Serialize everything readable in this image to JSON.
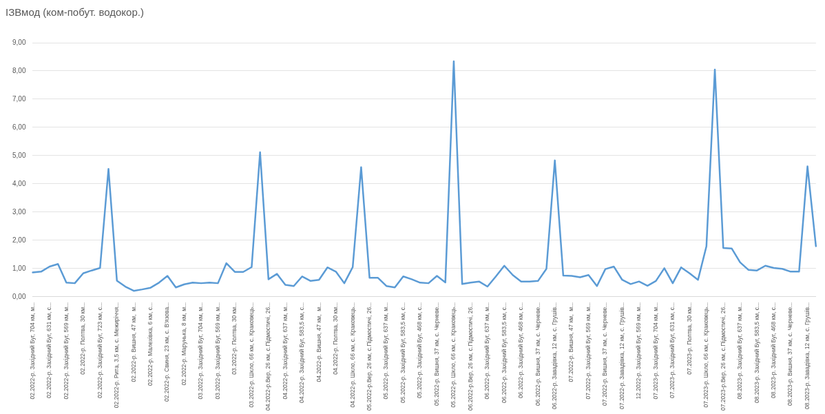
{
  "chart_data": {
    "type": "line",
    "title": "ІЗВмод (ком-побут. водокор.)",
    "categories": [
      "02.2022-р. Західний Буг, 704 км, м...",
      null,
      "02.2022-р. Західний Буг, 631 км, с...",
      null,
      "02.2022-р. Західний Буг, 569 км, м...",
      null,
      "02.2022-р. Полтва, 30 км...",
      null,
      "02.2022-р. Західний Буг, 723 км, с...",
      null,
      "02.2022-р. Рита, 3,5 км, с. Межиріччя...",
      null,
      "02.2022-р. Вишня, 47 км,  м...",
      null,
      "02.2022-р. Малехівка, 6 км, с...",
      null,
      "02.2022-р. Свиня, 23 км, с. В'язова...",
      null,
      "02.2022-р. Марунька, 8 км, м...",
      null,
      "03.2022-р. Західний Буг, 704 км, м...",
      null,
      "03.2022-р. Західний Буг, 569 км, м...",
      null,
      "03.2022-р. Полтва, 30 км...",
      null,
      "03.2022-р. Шкло, 66 км, с. Краковець...",
      null,
      "04.2022-р.Вер, 26 км, с.Підмостичі, 26...",
      null,
      "04.2022-р. Західний Буг, 637 км, м...",
      null,
      "04.2022-р. Західний Буг, 583,5 км, с...",
      null,
      "04.2022-р. Вишня, 47 км,  м...",
      null,
      "04.2022-р. Полтва, 30 км...",
      null,
      "04.2022-р. Шкло, 66 км, с. Краковець...",
      null,
      "05.2022-р.Вер, 26 км, с.Підмостичі, 26...",
      null,
      "05.2022-р. Західний Буг, 637 км, м...",
      null,
      "05.2022-р. Західний Буг, 583,5 км, с...",
      null,
      "05.2022-р. Західний Буг, 468 км, с...",
      null,
      "05.2022-р. Вишня, 37 км, с. Черневе...",
      null,
      "05.2022-р. Шкло, 66 км, с. Краковець...",
      null,
      "06.2022-р.Вер, 26 км, с.Підмостичі, 26...",
      null,
      "06.2022-р. Західний Буг, 637 км, м...",
      null,
      "06.2022-р. Західний Буг, 583,5 км, с...",
      null,
      "06.2022-р. Західний Буг, 468 км, с...",
      null,
      "06.2022-р. Вишня, 37 км, с. Черневе...",
      null,
      "06.2022-р. Завадівка, 12 км, с. Грушів...",
      null,
      "07.2022-р. Вишня, 47 км,  м...",
      null,
      "07.2022-р. Західний Буг, 569 км, м...",
      null,
      "07.2022-р. Вишня, 37 км, с. Черневе...",
      null,
      "07.2022-р. Завадівка, 12 км, с. Грушів...",
      null,
      "12.2022-р. Західний Буг, 569 км, м...",
      null,
      "07.2023-р. Західний Буг, 704 км, м...",
      null,
      "07.2023-р. Західний Буг, 631 км, с...",
      null,
      "07.2023-р. Полтва, 30 км...",
      null,
      "07.2023-р. Шкло, 66 км, с. Краковець...",
      null,
      "07.2023-р.Вер, 26 км, с.Підмостичі, 26...",
      null,
      "08.2023-р. Західний Буг, 637 км, м...",
      null,
      "08.2023-р. Західний Буг, 583,5 км, с...",
      null,
      "08.2023-р. Західний Буг, 468 км, с...",
      null,
      "08.2023-р. Вишня, 37 км, с. Черневе...",
      null,
      "08.2023-р. Завадівка, 12 км, с. Грушів...",
      null
    ],
    "series": [
      {
        "color": "#5b9bd5",
        "values": [
          0.86,
          0.89,
          1.07,
          1.16,
          0.5,
          0.48,
          0.83,
          0.93,
          1.02,
          4.53,
          0.57,
          0.36,
          0.21,
          0.26,
          0.32,
          0.5,
          0.74,
          0.33,
          0.44,
          0.5,
          0.48,
          0.5,
          0.48,
          1.19,
          0.88,
          0.88,
          1.05,
          5.12,
          0.62,
          0.81,
          0.42,
          0.38,
          0.72,
          0.56,
          0.6,
          1.04,
          0.89,
          0.48,
          1.05,
          4.59,
          0.67,
          0.67,
          0.38,
          0.33,
          0.72,
          0.62,
          0.5,
          0.48,
          0.74,
          0.51,
          8.34,
          0.45,
          0.5,
          0.54,
          0.36,
          0.72,
          1.1,
          0.77,
          0.54,
          0.54,
          0.56,
          0.99,
          4.83,
          0.75,
          0.74,
          0.69,
          0.77,
          0.38,
          0.98,
          1.07,
          0.6,
          0.45,
          0.54,
          0.39,
          0.56,
          1.01,
          0.48,
          1.04,
          0.83,
          0.6,
          1.79,
          8.05,
          1.73,
          1.71,
          1.22,
          0.95,
          0.93,
          1.1,
          1.02,
          0.99,
          0.89,
          0.89,
          4.62,
          1.79
        ]
      }
    ],
    "ylim": [
      0,
      9
    ],
    "yticks": [
      {
        "value": 0,
        "label": "0,00"
      },
      {
        "value": 1,
        "label": "1,00"
      },
      {
        "value": 2,
        "label": "2,00"
      },
      {
        "value": 3,
        "label": "3,00"
      },
      {
        "value": 4,
        "label": "4,00"
      },
      {
        "value": 5,
        "label": "5,00"
      },
      {
        "value": 6,
        "label": "6,00"
      },
      {
        "value": 7,
        "label": "7,00"
      },
      {
        "value": 8,
        "label": "8,00"
      },
      {
        "value": 9,
        "label": "9,00"
      }
    ],
    "grid": "y",
    "legend": false,
    "marker": "none",
    "line_style": "solid"
  }
}
